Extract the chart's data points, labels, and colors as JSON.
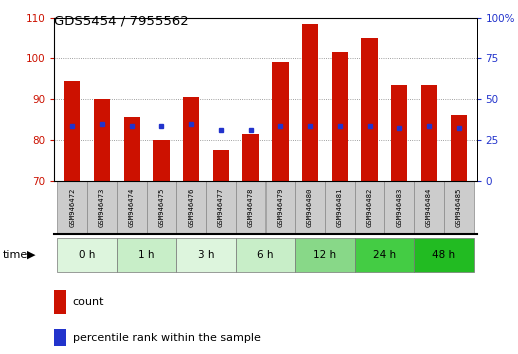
{
  "title": "GDS5454 / 7955562",
  "samples": [
    "GSM946472",
    "GSM946473",
    "GSM946474",
    "GSM946475",
    "GSM946476",
    "GSM946477",
    "GSM946478",
    "GSM946479",
    "GSM946480",
    "GSM946481",
    "GSM946482",
    "GSM946483",
    "GSM946484",
    "GSM946485"
  ],
  "count_values": [
    94.5,
    90.0,
    85.5,
    80.0,
    90.5,
    77.5,
    81.5,
    99.0,
    108.5,
    101.5,
    105.0,
    93.5,
    93.5,
    86.0
  ],
  "percentile_left_axis": [
    83.5,
    84.0,
    83.5,
    83.5,
    84.0,
    82.5,
    82.5,
    83.5,
    83.5,
    83.5,
    83.5,
    83.0,
    83.5,
    83.0
  ],
  "ylim_left": [
    70,
    110
  ],
  "ylim_right": [
    0,
    100
  ],
  "yticks_left": [
    70,
    80,
    90,
    100,
    110
  ],
  "yticks_right": [
    0,
    25,
    50,
    75,
    100
  ],
  "ytick_right_labels": [
    "0",
    "25",
    "50",
    "75",
    "100%"
  ],
  "bar_bottom": 70,
  "bar_width": 0.55,
  "bar_color": "#cc1100",
  "percentile_color": "#2233cc",
  "sample_box_color": "#cccccc",
  "sample_box_edge": "#888888",
  "time_groups": [
    {
      "label": "0 h",
      "start": 0,
      "end": 1,
      "color": "#ddf5dd"
    },
    {
      "label": "1 h",
      "start": 2,
      "end": 3,
      "color": "#c8eec8"
    },
    {
      "label": "3 h",
      "start": 4,
      "end": 5,
      "color": "#ddf5dd"
    },
    {
      "label": "6 h",
      "start": 6,
      "end": 7,
      "color": "#c8eec8"
    },
    {
      "label": "12 h",
      "start": 8,
      "end": 9,
      "color": "#88d888"
    },
    {
      "label": "24 h",
      "start": 10,
      "end": 11,
      "color": "#44cc44"
    },
    {
      "label": "48 h",
      "start": 12,
      "end": 13,
      "color": "#22bb22"
    }
  ],
  "legend_count": "count",
  "legend_percentile": "percentile rank within the sample",
  "time_label": "time"
}
